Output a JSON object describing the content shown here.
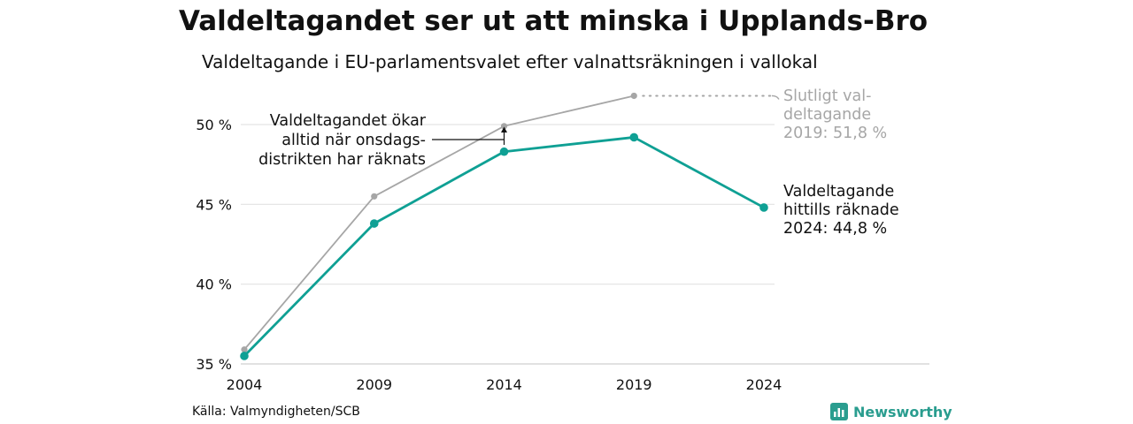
{
  "title": "Valdeltagandet ser ut att minska i Upplands-Bro",
  "subtitle": "Valdeltagande i EU-parlamentsvalet efter valnattsräkningen i vallokal",
  "source": "Källa: Valmyndigheten/SCB",
  "brand": {
    "name": "Newsworthy",
    "icon": "newsworthy-logo-icon",
    "color": "#2a9d8f"
  },
  "chart_data": {
    "type": "line",
    "x": [
      2004,
      2009,
      2014,
      2019,
      2024
    ],
    "ylim": [
      35,
      52
    ],
    "yticks": [
      35,
      40,
      45,
      50
    ],
    "ytick_labels": [
      "35 %",
      "40 %",
      "45 %",
      "50 %"
    ],
    "xtick_labels": [
      "2004",
      "2009",
      "2014",
      "2019",
      "2024"
    ],
    "grid": true,
    "series": [
      {
        "key": "final",
        "values": [
          35.9,
          45.5,
          49.9,
          51.8,
          null
        ],
        "color": "#a6a6a6"
      },
      {
        "key": "prelim",
        "values": [
          35.5,
          43.8,
          48.3,
          49.2,
          44.8
        ],
        "color": "#0fa094"
      }
    ],
    "annotations": {
      "final_label": [
        "Slutligt val-",
        "deltagande",
        "2019: 51,8 %"
      ],
      "prelim_label": [
        "Valdeltagande",
        "hittills räknade",
        "2024: 44,8 %"
      ],
      "note": [
        "Valdeltagandet ökar",
        "alltid när onsdags-",
        "distrikten har räknats"
      ]
    }
  }
}
